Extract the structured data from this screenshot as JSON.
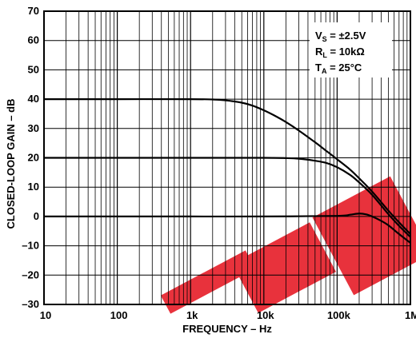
{
  "chart_data": {
    "type": "line",
    "xlabel": "FREQUENCY – Hz",
    "ylabel": "CLOSED-LOOP GAIN – dB",
    "xscale": "log",
    "xlim": [
      10,
      1000000
    ],
    "ylim": [
      -30,
      70
    ],
    "grid": true,
    "xtick_values": [
      10,
      100,
      1000,
      10000,
      100000,
      1000000
    ],
    "xtick_labels": [
      "10",
      "100",
      "1k",
      "10k",
      "100k",
      "1M"
    ],
    "ytick_values": [
      70,
      60,
      50,
      40,
      30,
      20,
      10,
      0,
      -10,
      -20,
      -30
    ],
    "ytick_labels": [
      "70",
      "60",
      "50",
      "40",
      "30",
      "20",
      "10",
      "0",
      "–10",
      "–20",
      "–30"
    ],
    "conditions": {
      "line1": {
        "main": "V",
        "sub": "S",
        "rest": " = ±2.5V"
      },
      "line2": {
        "main": "R",
        "sub": "L",
        "rest": " = 10kΩ"
      },
      "line3": {
        "main": "T",
        "sub": "A",
        "rest": " = 25°C"
      }
    },
    "legend_placement": "top-right",
    "watermark_text": "OBSOLETE",
    "watermark_color": "#e8323c",
    "series": [
      {
        "x": [
          10,
          100,
          1000,
          2000,
          3000,
          5000,
          7000,
          10000,
          15000,
          20000,
          30000,
          50000,
          70000,
          100000,
          150000,
          200000,
          300000,
          500000,
          700000,
          1000000
        ],
        "y": [
          40,
          40,
          40,
          39.9,
          39.6,
          38.8,
          37.8,
          36.2,
          34,
          32.2,
          29.3,
          25.3,
          22.5,
          19.5,
          16,
          13,
          8.5,
          2,
          -2,
          -6
        ],
        "color": "#000000"
      },
      {
        "x": [
          10,
          100,
          1000,
          10000,
          20000,
          30000,
          50000,
          70000,
          100000,
          150000,
          200000,
          300000,
          500000,
          700000,
          1000000
        ],
        "y": [
          20,
          20,
          20,
          20,
          19.9,
          19.7,
          19,
          18.3,
          16.8,
          14.2,
          11.6,
          7.4,
          0.8,
          -3.2,
          -7
        ],
        "color": "#000000"
      },
      {
        "x": [
          10,
          100,
          1000,
          10000,
          100000,
          150000,
          200000,
          250000,
          300000,
          400000,
          500000,
          700000,
          1000000
        ],
        "y": [
          0,
          0,
          0,
          0,
          0.2,
          0.6,
          1,
          0.7,
          0,
          -1.5,
          -3,
          -6,
          -9
        ],
        "color": "#000000"
      }
    ]
  }
}
